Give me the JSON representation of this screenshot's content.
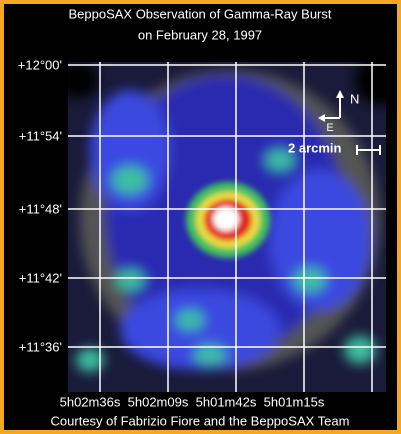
{
  "header": {
    "title_line1": "BeppoSAX Observation of Gamma-Ray Burst",
    "title_line2": "on February 28, 1997"
  },
  "axes": {
    "dec_labels": [
      "+12°00'",
      "+11°54'",
      "+11°48'",
      "+11°42'",
      "+11°36'"
    ],
    "ra_labels": [
      "5h02m36s",
      "5h02m09s",
      "5h01m42s",
      "5h01m15s"
    ]
  },
  "compass": {
    "north": "N",
    "east": "E"
  },
  "scale_bar": {
    "label": "2 arcmin"
  },
  "footer": {
    "credit": "Courtesy of Fabrizio Fiore and the BeppoSAX Team"
  }
}
